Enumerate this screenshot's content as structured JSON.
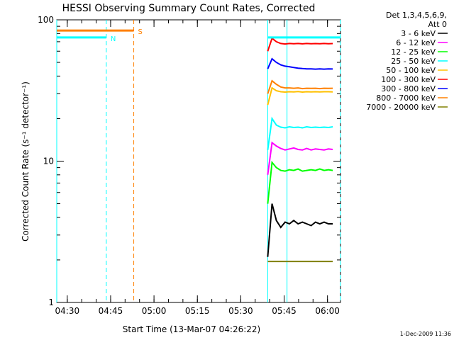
{
  "chart_data": {
    "type": "line",
    "title": "HESSI Observing Summary Count Rates, Corrected",
    "xlabel": "Start Time (13-Mar-07 04:26:22)",
    "ylabel": "Corrected Count Rate (s⁻¹ detector⁻¹)",
    "yscale": "log",
    "ylim": [
      1,
      100
    ],
    "xlim": [
      "04:26:22",
      "06:04:30"
    ],
    "x_ticks": [
      "04:30",
      "04:45",
      "05:00",
      "05:15",
      "05:30",
      "05:45",
      "06:00"
    ],
    "y_ticks": [
      "1",
      "10",
      "100"
    ],
    "grid": false,
    "legend_position": "right",
    "legend_header": [
      "Det 1,3,4,5,6,9,",
      "Att 0"
    ],
    "series": [
      {
        "name": "3 - 6 keV",
        "color": "#000000",
        "start": "05:39:20",
        "values": [
          2.1,
          5.0,
          3.8,
          3.4,
          3.7,
          3.6,
          3.8,
          3.6,
          3.7,
          3.6,
          3.5,
          3.7,
          3.6,
          3.7,
          3.6,
          3.6
        ]
      },
      {
        "name": "6 - 12 keV",
        "color": "#ff00ff",
        "start": "05:39:20",
        "values": [
          8.0,
          13.5,
          12.8,
          12.3,
          12.0,
          12.2,
          12.4,
          12.1,
          12.0,
          12.3,
          12.0,
          12.2,
          12.1,
          12.0,
          12.2,
          12.1
        ]
      },
      {
        "name": "12 - 25 keV",
        "color": "#00ff00",
        "start": "05:39:20",
        "values": [
          5.0,
          9.8,
          9.0,
          8.6,
          8.5,
          8.7,
          8.6,
          8.8,
          8.5,
          8.6,
          8.7,
          8.6,
          8.8,
          8.6,
          8.7,
          8.6
        ]
      },
      {
        "name": "25 - 50 keV",
        "color": "#00ffff",
        "start": "05:39:20",
        "values": [
          12.0,
          20.0,
          18.0,
          17.4,
          17.2,
          17.5,
          17.3,
          17.4,
          17.2,
          17.5,
          17.3,
          17.4,
          17.3,
          17.4,
          17.3,
          17.5
        ]
      },
      {
        "name": "50 - 100 keV",
        "color": "#ffc000",
        "start": "05:39:20",
        "values": [
          25.0,
          33.0,
          31.5,
          31.0,
          30.8,
          31.0,
          30.9,
          31.1,
          30.8,
          31.0,
          30.9,
          31.0,
          30.9,
          31.0,
          31.0,
          30.9
        ]
      },
      {
        "name": "100 - 300 keV",
        "color": "#ff0000",
        "start": "05:39:20",
        "values": [
          60.0,
          74.0,
          70.0,
          68.0,
          67.5,
          68.0,
          67.8,
          68.0,
          67.6,
          68.0,
          67.8,
          67.9,
          67.7,
          68.0,
          67.8,
          67.9
        ]
      },
      {
        "name": "300 - 800 keV",
        "color": "#0000ff",
        "start": "05:39:20",
        "values": [
          45.0,
          53.0,
          50.0,
          48.0,
          47.0,
          46.5,
          46.0,
          45.5,
          45.2,
          45.0,
          45.0,
          44.8,
          45.0,
          44.8,
          45.0,
          44.9
        ]
      },
      {
        "name": "800 - 7000 keV",
        "color": "#ff8000",
        "start": "05:39:20",
        "values": [
          30.0,
          37.0,
          35.0,
          33.5,
          33.0,
          33.0,
          32.8,
          33.0,
          32.6,
          32.8,
          32.7,
          32.8,
          32.6,
          32.8,
          32.7,
          32.8
        ]
      },
      {
        "name": "7000 - 20000 keV",
        "color": "#808000",
        "start": "05:39:20",
        "values": [
          1.95,
          1.95,
          1.95,
          1.95,
          1.95,
          1.95,
          1.95,
          1.95,
          1.95,
          1.95,
          1.95,
          1.95,
          1.95,
          1.95,
          1.95,
          1.95
        ]
      }
    ],
    "attenuator_bars": [
      {
        "label": "S",
        "color": "#ff8000",
        "value": 84,
        "from": "04:26:22",
        "to": "04:53:00"
      },
      {
        "label": "N",
        "color": "#00ffff",
        "value": 75,
        "from": "04:26:22",
        "to": "04:43:30"
      },
      {
        "label": "",
        "color": "#00ffff",
        "value": 75,
        "from": "05:39:20",
        "to": "06:04:30"
      }
    ],
    "markers": [
      {
        "type": "dashed",
        "color": "#00ffff",
        "at": "04:43:30"
      },
      {
        "type": "dashed",
        "color": "#ff8000",
        "at": "04:53:00"
      },
      {
        "type": "dashed",
        "color": "#00ffff",
        "at": "06:04:30"
      },
      {
        "type": "solid",
        "color": "#00ffff",
        "at": "04:26:22"
      },
      {
        "type": "solid",
        "color": "#00ffff",
        "at": "05:46:00"
      },
      {
        "type": "solid",
        "color": "#00ffff",
        "at": "05:39:20"
      }
    ]
  },
  "footer_date": "1-Dec-2009 11:36"
}
